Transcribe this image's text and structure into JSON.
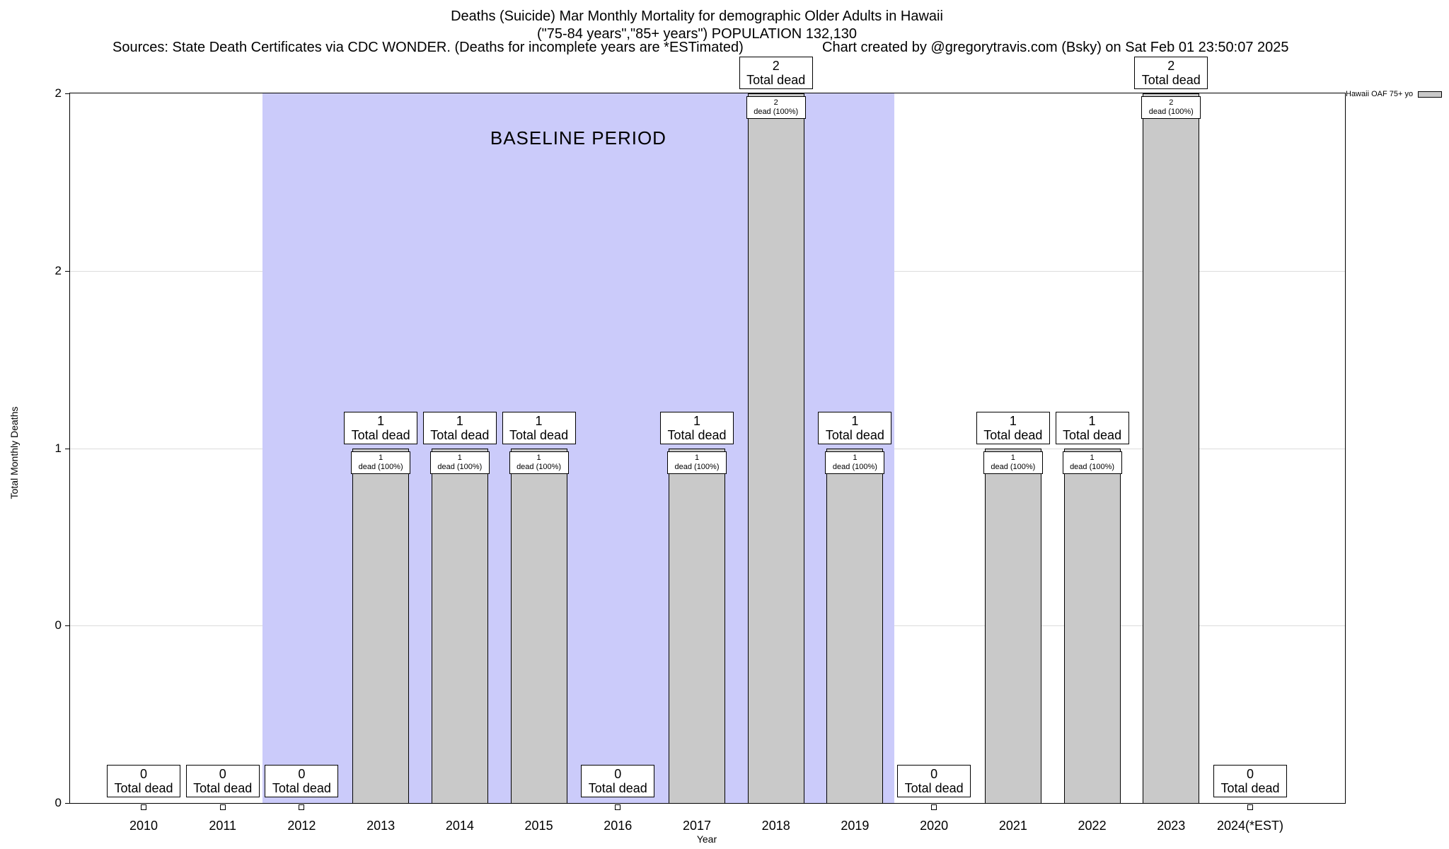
{
  "header": {
    "line1": "Deaths (Suicide) Mar Monthly Mortality for demographic Older Adults in Hawaii",
    "line2": "(\"75-84 years\",\"85+ years\") POPULATION 132,130",
    "sources": "Sources: State Death Certificates via CDC WONDER. (Deaths for incomplete years are *ESTimated)",
    "credit": "Chart created by @gregorytravis.com (Bsky) on Sat Feb 01 23:50:07 2025"
  },
  "labels": {
    "total_dead": "Total dead",
    "dead_pct": "dead (100%)"
  },
  "colors": {
    "bar": "#c9c9c9",
    "baseline_band": "#cbcbfa",
    "grid": "#dcdcdc"
  },
  "chart_data": {
    "type": "bar",
    "title": "Deaths (Suicide) Mar Monthly Mortality for demographic Older Adults in Hawaii",
    "subtitle": "(\"75-84 years\",\"85+ years\") POPULATION 132,130",
    "categories": [
      "2010",
      "2011",
      "2012",
      "2013",
      "2014",
      "2015",
      "2016",
      "2017",
      "2018",
      "2019",
      "2020",
      "2021",
      "2022",
      "2023",
      "2024(*EST)"
    ],
    "values": [
      0,
      0,
      0,
      1,
      1,
      1,
      0,
      1,
      2,
      1,
      0,
      1,
      1,
      2,
      0
    ],
    "bar_annotation_top": "Total dead",
    "bar_annotation_inner": "dead (100%)",
    "xlabel": "Year",
    "ylabel": "Total Monthly Deaths",
    "ylim": [
      0,
      2
    ],
    "ytick_values": [
      0,
      0.5,
      1,
      1.5,
      2
    ],
    "ytick_labels": [
      "0",
      "0",
      "1",
      "2",
      "2"
    ],
    "grid": true,
    "bar_color": "#c9c9c9",
    "legend": [
      {
        "label": "Hawaii OAF 75+ yo",
        "color": "#c9c9c9"
      }
    ],
    "legend_position": "top-right-outside",
    "baseline_band": {
      "label": "BASELINE PERIOD",
      "start_category": "2012",
      "end_category": "2019",
      "color": "#cbcbfa"
    }
  }
}
